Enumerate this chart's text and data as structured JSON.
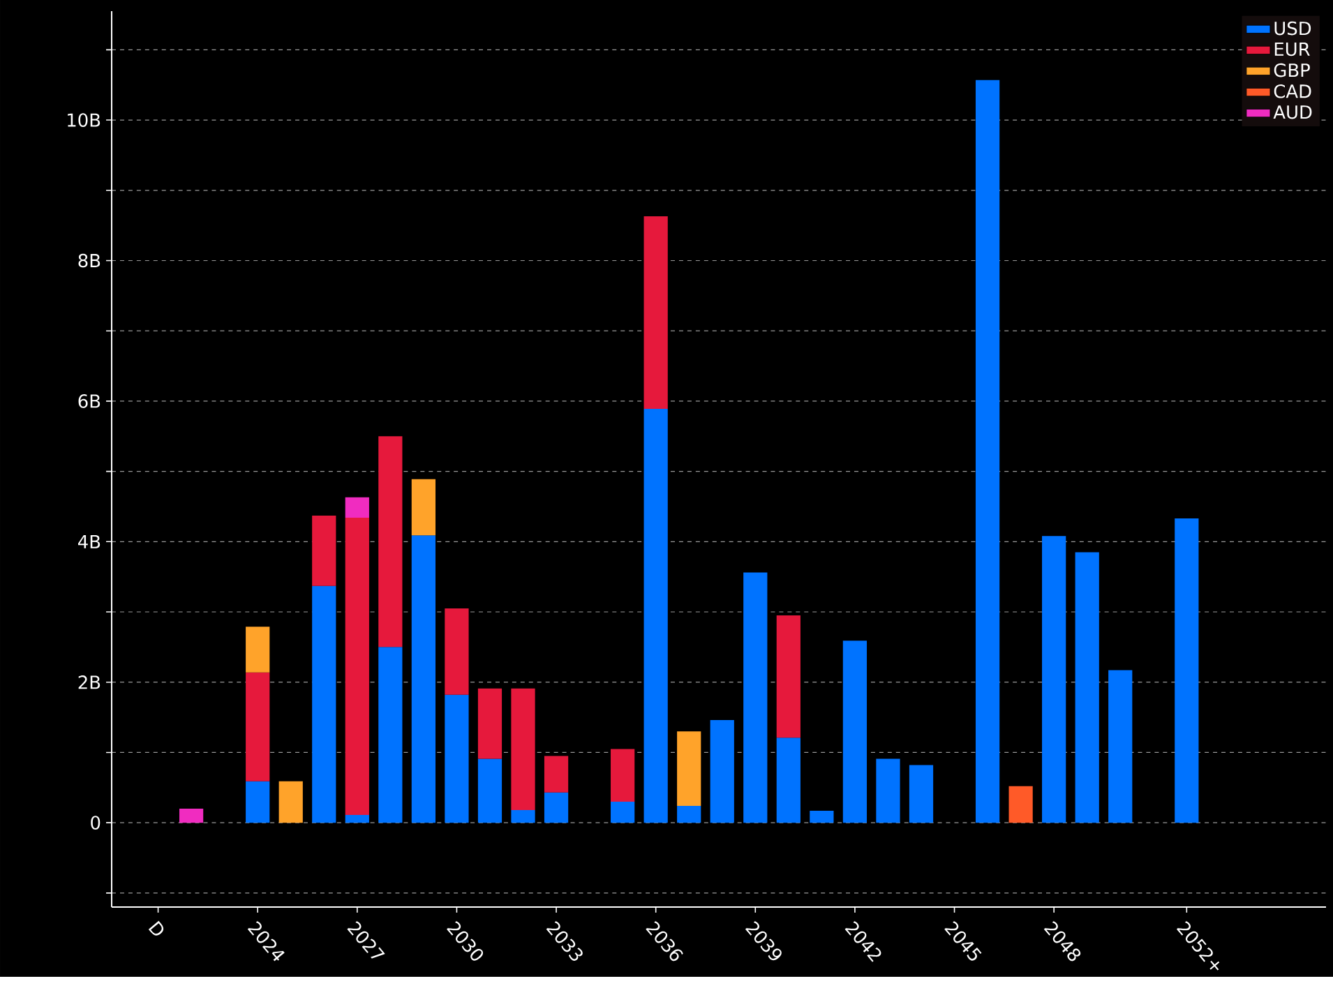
{
  "chart_data": {
    "type": "bar",
    "stacked": true,
    "categories": [
      "D",
      null,
      null,
      "2024",
      null,
      null,
      "2027",
      null,
      null,
      "2030",
      null,
      null,
      "2033",
      null,
      null,
      "2036",
      null,
      null,
      "2039",
      null,
      null,
      "2042",
      null,
      null,
      "2045",
      null,
      null,
      "2048",
      null,
      null,
      null,
      "2052+"
    ],
    "series": [
      {
        "name": "USD",
        "color": "#0073ff",
        "values": [
          null,
          null,
          null,
          0.59,
          null,
          3.37,
          0.11,
          2.5,
          4.09,
          1.82,
          0.91,
          0.18,
          0.43,
          null,
          0.3,
          5.89,
          0.24,
          1.46,
          3.56,
          1.21,
          0.17,
          2.59,
          0.91,
          0.82,
          null,
          10.57,
          null,
          4.08,
          3.85,
          2.17,
          null,
          4.33
        ]
      },
      {
        "name": "EUR",
        "color": "#e6193c",
        "values": [
          null,
          null,
          null,
          1.55,
          null,
          1.0,
          4.23,
          3.0,
          null,
          1.23,
          1.0,
          1.73,
          0.52,
          null,
          0.75,
          2.74,
          null,
          null,
          null,
          1.74,
          null,
          null,
          null,
          null,
          null,
          null,
          null,
          null,
          null,
          null,
          null,
          null
        ]
      },
      {
        "name": "GBP",
        "color": "#ffa32a",
        "values": [
          null,
          null,
          null,
          0.65,
          0.59,
          null,
          null,
          null,
          0.8,
          null,
          null,
          null,
          null,
          null,
          null,
          null,
          1.06,
          null,
          null,
          null,
          null,
          null,
          null,
          null,
          null,
          null,
          null,
          null,
          null,
          null,
          null,
          null
        ]
      },
      {
        "name": "CAD",
        "color": "#ff5a28",
        "values": [
          null,
          null,
          null,
          null,
          null,
          null,
          null,
          null,
          null,
          null,
          null,
          null,
          null,
          null,
          null,
          null,
          null,
          null,
          null,
          null,
          null,
          null,
          null,
          null,
          null,
          null,
          0.52,
          null,
          null,
          null,
          null,
          null
        ]
      },
      {
        "name": "AUD",
        "color": "#f02cc0",
        "values": [
          null,
          0.2,
          null,
          null,
          null,
          null,
          0.29,
          null,
          null,
          null,
          null,
          null,
          null,
          null,
          null,
          null,
          null,
          null,
          null,
          null,
          null,
          null,
          null,
          null,
          null,
          null,
          null,
          null,
          null,
          null,
          null,
          null
        ]
      }
    ],
    "ylim": [
      -1.2,
      11.55
    ],
    "yticks": [
      {
        "value": -1,
        "label": null
      },
      {
        "value": 0,
        "label": "0"
      },
      {
        "value": 1,
        "label": null
      },
      {
        "value": 2,
        "label": "2B"
      },
      {
        "value": 3,
        "label": null
      },
      {
        "value": 4,
        "label": "4B"
      },
      {
        "value": 5,
        "label": null
      },
      {
        "value": 6,
        "label": "6B"
      },
      {
        "value": 7,
        "label": null
      },
      {
        "value": 8,
        "label": "8B"
      },
      {
        "value": 9,
        "label": null
      },
      {
        "value": 10,
        "label": "10B"
      },
      {
        "value": 11,
        "label": null
      }
    ],
    "grid": "y",
    "legend": "top right"
  }
}
